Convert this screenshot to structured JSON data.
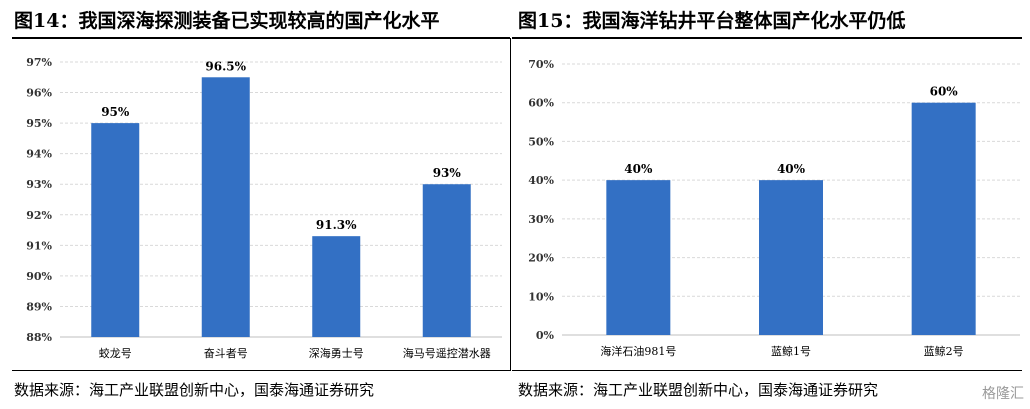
{
  "left": {
    "title": "图14：我国深海探测装备已实现较高的国产化水平",
    "source": "数据来源：海工产业联盟创新中心，国泰海通证券研究"
  },
  "right": {
    "title": "图15：我国海洋钻井平台整体国产化水平仍低",
    "source": "数据来源：海工产业联盟创新中心，国泰海通证券研究"
  },
  "watermark": "格隆汇",
  "colors": {
    "bar": "#3370C4",
    "grid": "#d9d9d9",
    "axis": "#bfbfbf"
  },
  "chart_data": [
    {
      "type": "bar",
      "categories": [
        "蛟龙号",
        "奋斗者号",
        "深海勇士号",
        "海马号遥控潜水器"
      ],
      "values": [
        95,
        96.5,
        91.3,
        93
      ],
      "data_labels": [
        "95%",
        "96.5%",
        "91.3%",
        "93%"
      ],
      "ylim": [
        88,
        97
      ],
      "yticks": [
        "88%",
        "89%",
        "90%",
        "91%",
        "92%",
        "93%",
        "94%",
        "95%",
        "96%",
        "97%"
      ],
      "grid": true,
      "legend": "none"
    },
    {
      "type": "bar",
      "categories": [
        "海洋石油981号",
        "蓝鲸1号",
        "蓝鲸2号"
      ],
      "values": [
        40,
        40,
        60
      ],
      "data_labels": [
        "40%",
        "40%",
        "60%"
      ],
      "ylim": [
        0,
        70
      ],
      "yticks": [
        "0%",
        "10%",
        "20%",
        "30%",
        "40%",
        "50%",
        "60%",
        "70%"
      ],
      "grid": true,
      "legend": "none"
    }
  ]
}
